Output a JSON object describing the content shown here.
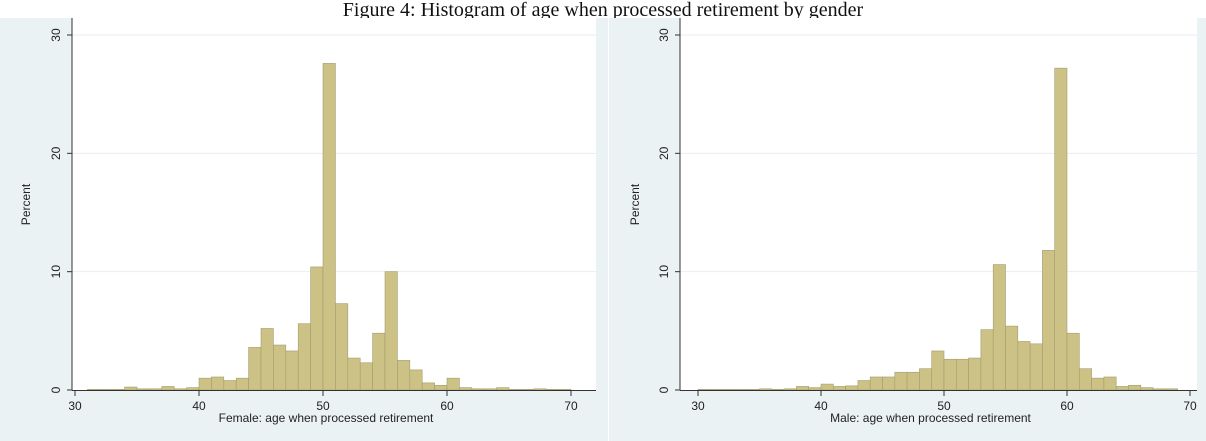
{
  "title": "Figure 4: Histogram of age when processed retirement by gender",
  "colors": {
    "bar_fill": "#cdc285",
    "bar_stroke": "#a39c6e",
    "plot_bg": "#ffffff",
    "outer_bg": "#eaf2f3",
    "grid": "#e6eef0",
    "axis": "#333333"
  },
  "chart_data": [
    {
      "type": "bar",
      "xlabel": "Female: age when processed retirement",
      "ylabel": "Percent",
      "xlim": [
        30,
        70
      ],
      "ylim": [
        0,
        30
      ],
      "xticks": [
        30,
        40,
        50,
        60,
        70
      ],
      "yticks": [
        0,
        10,
        20,
        30
      ],
      "grid": true,
      "bin_width": 1,
      "bins": [
        {
          "x": 31,
          "value": 0.05
        },
        {
          "x": 32,
          "value": 0.05
        },
        {
          "x": 33,
          "value": 0.05
        },
        {
          "x": 34,
          "value": 0.25
        },
        {
          "x": 35,
          "value": 0.1
        },
        {
          "x": 36,
          "value": 0.1
        },
        {
          "x": 37,
          "value": 0.3
        },
        {
          "x": 38,
          "value": 0.1
        },
        {
          "x": 39,
          "value": 0.2
        },
        {
          "x": 40,
          "value": 1.0
        },
        {
          "x": 41,
          "value": 1.1
        },
        {
          "x": 42,
          "value": 0.8
        },
        {
          "x": 43,
          "value": 1.0
        },
        {
          "x": 44,
          "value": 3.6
        },
        {
          "x": 45,
          "value": 5.2
        },
        {
          "x": 46,
          "value": 3.8
        },
        {
          "x": 47,
          "value": 3.3
        },
        {
          "x": 48,
          "value": 5.6
        },
        {
          "x": 49,
          "value": 10.4
        },
        {
          "x": 50,
          "value": 27.6
        },
        {
          "x": 51,
          "value": 7.3
        },
        {
          "x": 52,
          "value": 2.7
        },
        {
          "x": 53,
          "value": 2.3
        },
        {
          "x": 54,
          "value": 4.8
        },
        {
          "x": 55,
          "value": 10.0
        },
        {
          "x": 56,
          "value": 2.5
        },
        {
          "x": 57,
          "value": 1.7
        },
        {
          "x": 58,
          "value": 0.6
        },
        {
          "x": 59,
          "value": 0.4
        },
        {
          "x": 60,
          "value": 1.0
        },
        {
          "x": 61,
          "value": 0.2
        },
        {
          "x": 62,
          "value": 0.1
        },
        {
          "x": 63,
          "value": 0.1
        },
        {
          "x": 64,
          "value": 0.2
        },
        {
          "x": 65,
          "value": 0.05
        },
        {
          "x": 66,
          "value": 0.05
        },
        {
          "x": 67,
          "value": 0.1
        },
        {
          "x": 68,
          "value": 0.05
        },
        {
          "x": 69,
          "value": 0.05
        }
      ]
    },
    {
      "type": "bar",
      "xlabel": "Male: age when processed retirement",
      "ylabel": "Percent",
      "xlim": [
        30,
        70
      ],
      "ylim": [
        0,
        30
      ],
      "xticks": [
        30,
        40,
        50,
        60,
        70
      ],
      "yticks": [
        0,
        10,
        20,
        30
      ],
      "grid": true,
      "bin_width": 1,
      "bins": [
        {
          "x": 30,
          "value": 0.05
        },
        {
          "x": 31,
          "value": 0.05
        },
        {
          "x": 32,
          "value": 0.05
        },
        {
          "x": 33,
          "value": 0.05
        },
        {
          "x": 34,
          "value": 0.05
        },
        {
          "x": 35,
          "value": 0.1
        },
        {
          "x": 36,
          "value": 0.05
        },
        {
          "x": 37,
          "value": 0.1
        },
        {
          "x": 38,
          "value": 0.3
        },
        {
          "x": 39,
          "value": 0.2
        },
        {
          "x": 40,
          "value": 0.5
        },
        {
          "x": 41,
          "value": 0.3
        },
        {
          "x": 42,
          "value": 0.35
        },
        {
          "x": 43,
          "value": 0.8
        },
        {
          "x": 44,
          "value": 1.1
        },
        {
          "x": 45,
          "value": 1.1
        },
        {
          "x": 46,
          "value": 1.5
        },
        {
          "x": 47,
          "value": 1.5
        },
        {
          "x": 48,
          "value": 1.8
        },
        {
          "x": 49,
          "value": 3.3
        },
        {
          "x": 50,
          "value": 2.6
        },
        {
          "x": 51,
          "value": 2.6
        },
        {
          "x": 52,
          "value": 2.7
        },
        {
          "x": 53,
          "value": 5.1
        },
        {
          "x": 54,
          "value": 10.6
        },
        {
          "x": 55,
          "value": 5.4
        },
        {
          "x": 56,
          "value": 4.1
        },
        {
          "x": 57,
          "value": 3.9
        },
        {
          "x": 58,
          "value": 11.8
        },
        {
          "x": 59,
          "value": 27.2
        },
        {
          "x": 60,
          "value": 4.8
        },
        {
          "x": 61,
          "value": 1.8
        },
        {
          "x": 62,
          "value": 1.0
        },
        {
          "x": 63,
          "value": 1.1
        },
        {
          "x": 64,
          "value": 0.3
        },
        {
          "x": 65,
          "value": 0.4
        },
        {
          "x": 66,
          "value": 0.2
        },
        {
          "x": 67,
          "value": 0.1
        },
        {
          "x": 68,
          "value": 0.1
        }
      ]
    }
  ]
}
